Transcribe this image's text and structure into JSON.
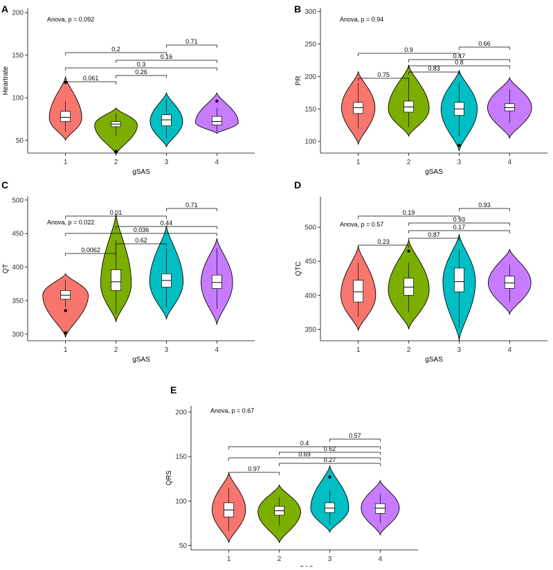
{
  "figure": {
    "group_label": "gSAS"
  },
  "colors": {
    "g1": "#f8766d",
    "g2": "#7cae00",
    "g3": "#00bfc4",
    "g4": "#c77cff"
  },
  "chart_data": [
    {
      "type": "violin",
      "panel": "A",
      "ylabel": "Heartrate",
      "xlabel": "gSAS",
      "categories": [
        "1",
        "2",
        "3",
        "4"
      ],
      "ylim": [
        35,
        205
      ],
      "yticks": [
        50,
        100,
        150,
        200
      ],
      "annotation": "Anova, p = 0.092",
      "groups": [
        {
          "name": "1",
          "range": [
            50,
            125
          ],
          "mode": 76,
          "width": 0.7,
          "box": [
            72,
            77,
            84
          ],
          "whisker": [
            60,
            96
          ],
          "outliers": [
            118
          ]
        },
        {
          "name": "2",
          "range": [
            33,
            88
          ],
          "mode": 68,
          "width": 0.92,
          "box": [
            66,
            69,
            72
          ],
          "whisker": [
            55,
            82
          ],
          "outliers": [
            37
          ]
        },
        {
          "name": "3",
          "range": [
            42,
            106
          ],
          "mode": 72,
          "width": 0.7,
          "box": [
            67,
            74,
            80
          ],
          "whisker": [
            52,
            98
          ],
          "outliers": []
        },
        {
          "name": "4",
          "range": [
            58,
            106
          ],
          "mode": 71,
          "width": 0.92,
          "box": [
            68,
            72,
            78
          ],
          "whisker": [
            60,
            88
          ],
          "outliers": [
            96
          ]
        }
      ],
      "comparisons": [
        {
          "from": "3",
          "to": "4",
          "label": "0.71"
        },
        {
          "from": "1",
          "to": "3",
          "label": "0.2"
        },
        {
          "from": "2",
          "to": "4",
          "label": "0.16"
        },
        {
          "from": "1",
          "to": "4",
          "label": "0.3"
        },
        {
          "from": "2",
          "to": "3",
          "label": "0.26"
        },
        {
          "from": "1",
          "to": "2",
          "label": "0.061"
        }
      ]
    },
    {
      "type": "violin",
      "panel": "B",
      "ylabel": "PR",
      "xlabel": "gSAS",
      "categories": [
        "1",
        "2",
        "3",
        "4"
      ],
      "ylim": [
        82,
        305
      ],
      "yticks": [
        100,
        150,
        200,
        250,
        300
      ],
      "annotation": "Anova, p = 0.94",
      "groups": [
        {
          "name": "1",
          "range": [
            95,
            208
          ],
          "mode": 152,
          "width": 0.72,
          "box": [
            143,
            152,
            160
          ],
          "whisker": [
            120,
            190
          ],
          "outliers": []
        },
        {
          "name": "2",
          "range": [
            108,
            218
          ],
          "mode": 150,
          "width": 0.88,
          "box": [
            145,
            153,
            162
          ],
          "whisker": [
            122,
            195
          ],
          "outliers": []
        },
        {
          "name": "3",
          "range": [
            85,
            210
          ],
          "mode": 150,
          "width": 0.78,
          "box": [
            140,
            150,
            160
          ],
          "whisker": [
            108,
            192
          ],
          "outliers": [
            94
          ]
        },
        {
          "name": "4",
          "range": [
            105,
            198
          ],
          "mode": 152,
          "width": 0.95,
          "box": [
            147,
            152,
            158
          ],
          "whisker": [
            128,
            180
          ],
          "outliers": []
        }
      ],
      "comparisons": [
        {
          "from": "3",
          "to": "4",
          "label": "0.66"
        },
        {
          "from": "1",
          "to": "3",
          "label": "0.9"
        },
        {
          "from": "2",
          "to": "4",
          "label": "0.47"
        },
        {
          "from": "2",
          "to": "4",
          "label": "0.8"
        },
        {
          "from": "2",
          "to": "3",
          "label": "0.83"
        },
        {
          "from": "1",
          "to": "2",
          "label": "0.75"
        }
      ]
    },
    {
      "type": "violin",
      "panel": "C",
      "ylabel": "QT",
      "xlabel": "gSAS",
      "categories": [
        "1",
        "2",
        "3",
        "4"
      ],
      "ylim": [
        290,
        505
      ],
      "yticks": [
        300,
        350,
        400,
        450,
        500
      ],
      "annotation": "Anova, p = 0.022",
      "groups": [
        {
          "name": "1",
          "range": [
            295,
            390
          ],
          "mode": 358,
          "width": 0.98,
          "box": [
            352,
            358,
            365
          ],
          "whisker": [
            340,
            380
          ],
          "outliers": [
            335,
            302
          ]
        },
        {
          "name": "2",
          "range": [
            318,
            480
          ],
          "mode": 375,
          "width": 0.66,
          "box": [
            365,
            378,
            396
          ],
          "whisker": [
            330,
            440
          ],
          "outliers": []
        },
        {
          "name": "3",
          "range": [
            322,
            462
          ],
          "mode": 378,
          "width": 0.72,
          "box": [
            370,
            380,
            390
          ],
          "whisker": [
            340,
            428
          ],
          "outliers": []
        },
        {
          "name": "4",
          "range": [
            314,
            443
          ],
          "mode": 377,
          "width": 0.68,
          "box": [
            368,
            377,
            388
          ],
          "whisker": [
            338,
            428
          ],
          "outliers": []
        }
      ],
      "comparisons": [
        {
          "from": "3",
          "to": "4",
          "label": "0.71"
        },
        {
          "from": "1",
          "to": "3",
          "label": "0.01"
        },
        {
          "from": "2",
          "to": "4",
          "label": "0.44"
        },
        {
          "from": "1",
          "to": "4",
          "label": "0.036"
        },
        {
          "from": "2",
          "to": "3",
          "label": "0.62"
        },
        {
          "from": "1",
          "to": "2",
          "label": "0.0062"
        }
      ]
    },
    {
      "type": "violin",
      "panel": "D",
      "ylabel": "QTC",
      "xlabel": "gSAS",
      "categories": [
        "1",
        "2",
        "3",
        "4"
      ],
      "ylim": [
        333,
        545
      ],
      "yticks": [
        350,
        400,
        450,
        500
      ],
      "annotation": "Anova, p = 0.57",
      "groups": [
        {
          "name": "1",
          "range": [
            348,
            473
          ],
          "mode": 400,
          "width": 0.75,
          "box": [
            390,
            405,
            422
          ],
          "whisker": [
            368,
            448
          ],
          "outliers": []
        },
        {
          "name": "2",
          "range": [
            350,
            482
          ],
          "mode": 408,
          "width": 0.88,
          "box": [
            400,
            412,
            425
          ],
          "whisker": [
            375,
            448
          ],
          "outliers": [
            465
          ]
        },
        {
          "name": "3",
          "range": [
            333,
            490
          ],
          "mode": 420,
          "width": 0.7,
          "box": [
            405,
            420,
            440
          ],
          "whisker": [
            352,
            468
          ],
          "outliers": []
        },
        {
          "name": "4",
          "range": [
            372,
            468
          ],
          "mode": 418,
          "width": 0.92,
          "box": [
            410,
            418,
            428
          ],
          "whisker": [
            390,
            445
          ],
          "outliers": []
        }
      ],
      "comparisons": [
        {
          "from": "3",
          "to": "4",
          "label": "0.93"
        },
        {
          "from": "1",
          "to": "3",
          "label": "0.19"
        },
        {
          "from": "2",
          "to": "4",
          "label": "0.93"
        },
        {
          "from": "2",
          "to": "4",
          "label": "0.17"
        },
        {
          "from": "2",
          "to": "3",
          "label": "0.87"
        },
        {
          "from": "1",
          "to": "2",
          "label": "0.23"
        }
      ]
    },
    {
      "type": "violin",
      "panel": "E",
      "ylabel": "QRS",
      "xlabel": "gSAS",
      "categories": [
        "1",
        "2",
        "3",
        "4"
      ],
      "ylim": [
        45,
        207
      ],
      "yticks": [
        50,
        100,
        150,
        200
      ],
      "annotation": "Anova, p = 0.67",
      "groups": [
        {
          "name": "1",
          "range": [
            53,
            132
          ],
          "mode": 90,
          "width": 0.72,
          "box": [
            82,
            90,
            98
          ],
          "whisker": [
            66,
            115
          ],
          "outliers": []
        },
        {
          "name": "2",
          "range": [
            53,
            118
          ],
          "mode": 88,
          "width": 0.92,
          "box": [
            84,
            89,
            94
          ],
          "whisker": [
            72,
            104
          ],
          "outliers": []
        },
        {
          "name": "3",
          "range": [
            65,
            140
          ],
          "mode": 92,
          "width": 0.82,
          "box": [
            87,
            92,
            98
          ],
          "whisker": [
            74,
            112
          ],
          "outliers": [
            127
          ]
        },
        {
          "name": "4",
          "range": [
            62,
            123
          ],
          "mode": 92,
          "width": 0.82,
          "box": [
            86,
            92,
            97
          ],
          "whisker": [
            75,
            108
          ],
          "outliers": []
        }
      ],
      "comparisons": [
        {
          "from": "3",
          "to": "4",
          "label": "0.57"
        },
        {
          "from": "1",
          "to": "4",
          "label": "0.4"
        },
        {
          "from": "2",
          "to": "4",
          "label": "0.62"
        },
        {
          "from": "1",
          "to": "4",
          "label": "0.69"
        },
        {
          "from": "2",
          "to": "4",
          "label": "0.27"
        },
        {
          "from": "1",
          "to": "2",
          "label": "0.97"
        }
      ]
    }
  ]
}
